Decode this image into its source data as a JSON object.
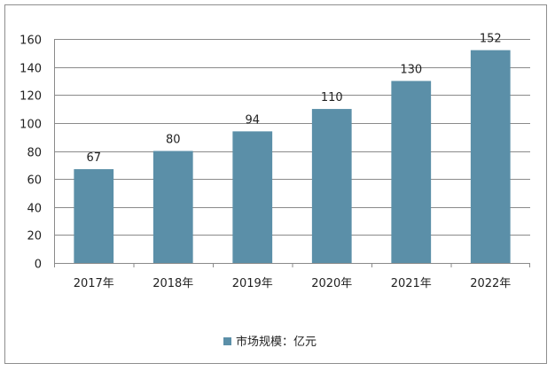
{
  "chart_data": {
    "type": "bar",
    "categories": [
      "2017年",
      "2018年",
      "2019年",
      "2020年",
      "2021年",
      "2022年"
    ],
    "series": [
      {
        "name": "市场规模：亿元",
        "values": [
          67,
          80,
          94,
          110,
          130,
          152
        ],
        "color": "#5b8fa8"
      }
    ],
    "data_labels": [
      "67",
      "80",
      "94",
      "110",
      "130",
      "152"
    ],
    "yticks": [
      0,
      20,
      40,
      60,
      80,
      100,
      120,
      140,
      160
    ],
    "ylim": [
      0,
      160
    ],
    "grid": true,
    "legend_position": "bottom",
    "title": "",
    "xlabel": "",
    "ylabel": ""
  }
}
